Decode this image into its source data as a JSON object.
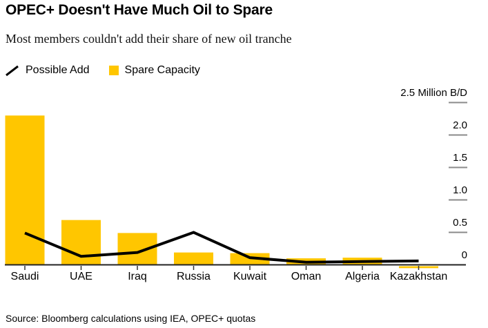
{
  "header": {
    "title": "OPEC+ Doesn't Have Much Oil to Spare",
    "subtitle": "Most members couldn't add their share of new oil tranche"
  },
  "legend": {
    "items": [
      {
        "label": "Possible Add",
        "swatch": "line",
        "color": "#000000"
      },
      {
        "label": "Spare Capacity",
        "swatch": "square",
        "color": "#FFC600"
      }
    ]
  },
  "chart_data": {
    "type": "combo-bar-line",
    "unit": "Million B/D",
    "categories": [
      "Saudi",
      "UAE",
      "Iraq",
      "Russia",
      "Kuwait",
      "Oman",
      "Algeria",
      "Kazakhstan"
    ],
    "series": [
      {
        "name": "Spare Capacity",
        "type": "bar",
        "color": "#FFC600",
        "values": [
          2.3,
          0.69,
          0.49,
          0.19,
          0.18,
          0.1,
          0.11,
          -0.03
        ]
      },
      {
        "name": "Possible Add",
        "type": "line",
        "color": "#000000",
        "values": [
          0.49,
          0.13,
          0.19,
          0.5,
          0.11,
          0.04,
          0.05,
          0.06
        ]
      }
    ],
    "yticks": [
      {
        "value": 2.5,
        "label": "2.5 Million B/D"
      },
      {
        "value": 2.0,
        "label": "2.0"
      },
      {
        "value": 1.5,
        "label": "1.5"
      },
      {
        "value": 1.0,
        "label": "1.0"
      },
      {
        "value": 0.5,
        "label": "0.5"
      },
      {
        "value": 0,
        "label": "0"
      }
    ],
    "ylim": [
      -0.1,
      2.5
    ],
    "grid": false,
    "legend_position": "top-left",
    "axis_side": "right"
  },
  "source": {
    "text": "Source: Bloomberg calculations using IEA, OPEC+ quotas"
  },
  "colors": {
    "bar": "#FFC600",
    "line": "#000000",
    "axis": "#222222",
    "tick_dash": "#8a8a8a",
    "x_tick": "#333333"
  }
}
